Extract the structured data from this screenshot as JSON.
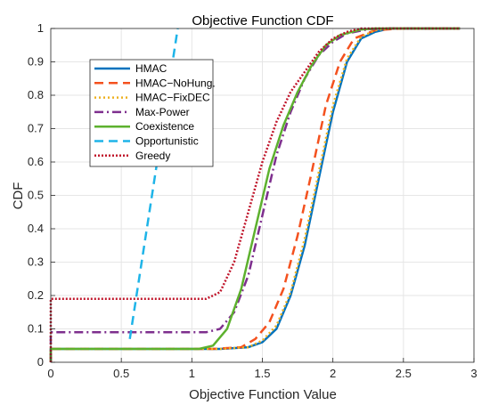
{
  "chart_data": {
    "type": "line",
    "title": "Objective Function CDF",
    "xlabel": "Objective Function Value",
    "ylabel": "CDF",
    "xlim": [
      0,
      3
    ],
    "ylim": [
      0,
      1
    ],
    "xticks": [
      "0",
      "0.5",
      "1",
      "1.5",
      "2",
      "2.5",
      "3"
    ],
    "yticks": [
      "0",
      "0.1",
      "0.2",
      "0.3",
      "0.4",
      "0.5",
      "0.6",
      "0.7",
      "0.8",
      "0.9",
      "1"
    ],
    "grid": true,
    "legend_position": "upper-left",
    "series": [
      {
        "name": "HMAC",
        "color": "#0072BD",
        "dash": "solid",
        "width": 2.5,
        "points": [
          [
            0,
            0
          ],
          [
            0,
            0.04
          ],
          [
            1.2,
            0.04
          ],
          [
            1.4,
            0.045
          ],
          [
            1.5,
            0.06
          ],
          [
            1.6,
            0.1
          ],
          [
            1.7,
            0.2
          ],
          [
            1.8,
            0.35
          ],
          [
            1.9,
            0.55
          ],
          [
            2.0,
            0.75
          ],
          [
            2.1,
            0.9
          ],
          [
            2.2,
            0.97
          ],
          [
            2.3,
            0.99
          ],
          [
            2.4,
            1.0
          ],
          [
            2.9,
            1.0
          ]
        ]
      },
      {
        "name": "HMAC−NoHung.",
        "color": "#F4511E",
        "dash": "10,6",
        "width": 2.5,
        "points": [
          [
            0,
            0
          ],
          [
            0,
            0.04
          ],
          [
            1.15,
            0.04
          ],
          [
            1.35,
            0.045
          ],
          [
            1.45,
            0.07
          ],
          [
            1.55,
            0.12
          ],
          [
            1.65,
            0.22
          ],
          [
            1.75,
            0.38
          ],
          [
            1.85,
            0.57
          ],
          [
            1.95,
            0.77
          ],
          [
            2.05,
            0.9
          ],
          [
            2.15,
            0.97
          ],
          [
            2.3,
            0.995
          ],
          [
            2.5,
            1.0
          ],
          [
            2.9,
            1.0
          ]
        ]
      },
      {
        "name": "HMAC−FixDEC",
        "color": "#EDB120",
        "dash": "2,3",
        "width": 2.5,
        "points": [
          [
            0,
            0
          ],
          [
            0,
            0.04
          ],
          [
            1.2,
            0.04
          ],
          [
            1.4,
            0.045
          ],
          [
            1.5,
            0.065
          ],
          [
            1.6,
            0.11
          ],
          [
            1.7,
            0.21
          ],
          [
            1.8,
            0.37
          ],
          [
            1.9,
            0.57
          ],
          [
            2.0,
            0.77
          ],
          [
            2.1,
            0.91
          ],
          [
            2.2,
            0.975
          ],
          [
            2.3,
            0.995
          ],
          [
            2.4,
            1.0
          ],
          [
            2.9,
            1.0
          ]
        ]
      },
      {
        "name": "Max-Power",
        "color": "#7E2F8E",
        "dash": "10,4,2,4",
        "width": 2.5,
        "points": [
          [
            0,
            0
          ],
          [
            0,
            0.09
          ],
          [
            1.1,
            0.09
          ],
          [
            1.2,
            0.1
          ],
          [
            1.3,
            0.15
          ],
          [
            1.4,
            0.26
          ],
          [
            1.5,
            0.44
          ],
          [
            1.6,
            0.62
          ],
          [
            1.7,
            0.75
          ],
          [
            1.8,
            0.85
          ],
          [
            1.9,
            0.92
          ],
          [
            2.0,
            0.96
          ],
          [
            2.1,
            0.985
          ],
          [
            2.25,
            0.998
          ],
          [
            2.4,
            1.0
          ],
          [
            2.9,
            1.0
          ]
        ]
      },
      {
        "name": "Coexistence",
        "color": "#5DB12E",
        "dash": "solid",
        "width": 2.5,
        "points": [
          [
            0,
            0
          ],
          [
            0,
            0.04
          ],
          [
            1.05,
            0.04
          ],
          [
            1.15,
            0.05
          ],
          [
            1.25,
            0.1
          ],
          [
            1.35,
            0.22
          ],
          [
            1.45,
            0.4
          ],
          [
            1.55,
            0.58
          ],
          [
            1.65,
            0.71
          ],
          [
            1.75,
            0.81
          ],
          [
            1.85,
            0.89
          ],
          [
            1.95,
            0.95
          ],
          [
            2.05,
            0.98
          ],
          [
            2.2,
            0.997
          ],
          [
            2.3,
            1.0
          ],
          [
            2.9,
            1.0
          ]
        ]
      },
      {
        "name": "Opportunistic",
        "color": "#1EB4E8",
        "dash": "10,6",
        "width": 2.5,
        "points": [
          [
            0.56,
            0.07
          ],
          [
            0.9,
            1.0
          ]
        ]
      },
      {
        "name": "Greedy",
        "color": "#C0152B",
        "dash": "2,2",
        "width": 2.5,
        "points": [
          [
            0,
            0
          ],
          [
            0,
            0.19
          ],
          [
            1.1,
            0.19
          ],
          [
            1.2,
            0.21
          ],
          [
            1.3,
            0.3
          ],
          [
            1.4,
            0.45
          ],
          [
            1.5,
            0.6
          ],
          [
            1.6,
            0.72
          ],
          [
            1.7,
            0.81
          ],
          [
            1.8,
            0.87
          ],
          [
            1.9,
            0.93
          ],
          [
            2.0,
            0.97
          ],
          [
            2.1,
            0.99
          ],
          [
            2.2,
            1.0
          ],
          [
            2.9,
            1.0
          ]
        ]
      }
    ]
  }
}
